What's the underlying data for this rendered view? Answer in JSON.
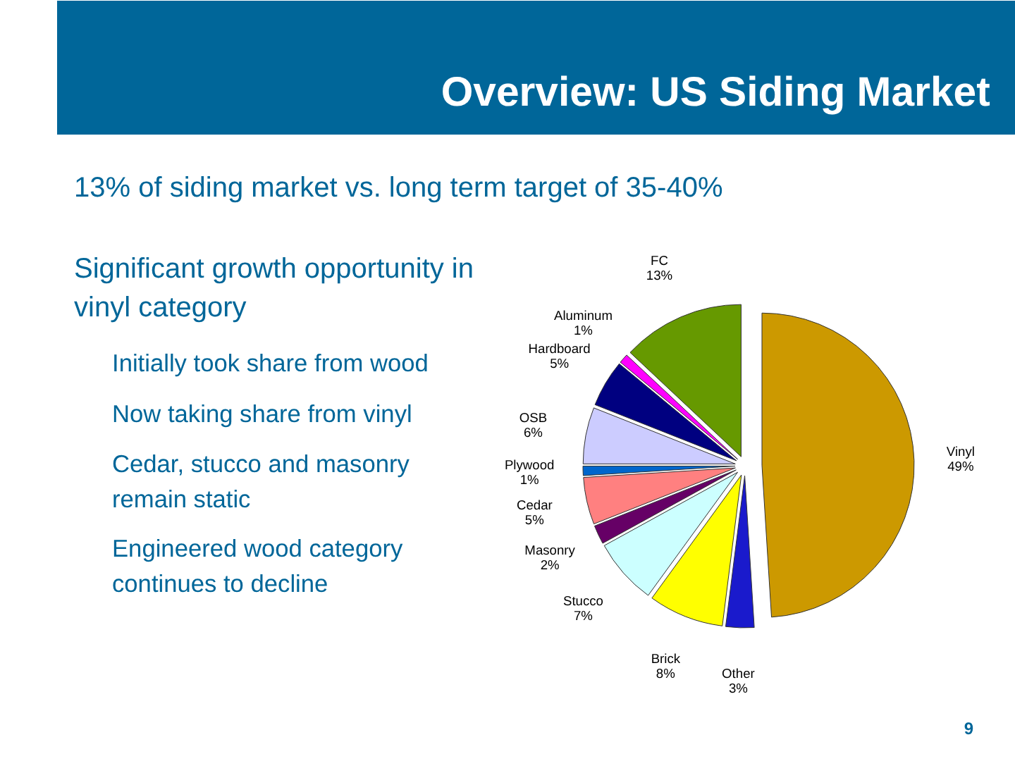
{
  "chart_data": {
    "type": "pie",
    "title": "Overview:  US Siding Market",
    "categories": [
      "Vinyl",
      "Other",
      "Brick",
      "Stucco",
      "Masonry",
      "Cedar",
      "Plywood",
      "OSB",
      "Hardboard",
      "Aluminum",
      "FC"
    ],
    "values": [
      49,
      3,
      8,
      7,
      2,
      5,
      1,
      6,
      5,
      1,
      13
    ],
    "value_labels": [
      "49%",
      "3%",
      "8%",
      "7%",
      "2%",
      "5%",
      "1%",
      "6%",
      "5%",
      "1%",
      "13%"
    ],
    "colors": [
      "#cc9900",
      "#1a1acc",
      "#ffff00",
      "#ccffff",
      "#660066",
      "#ff8080",
      "#0066cc",
      "#ccccff",
      "#000080",
      "#ff00ff",
      "#669900"
    ],
    "annotations": [
      "13% of siding market vs. long term target of 35-40%",
      "Significant growth opportunity in\nvinyl category",
      "Initially took share from wood",
      "Now taking share from vinyl",
      "Cedar, stucco and masonry\nremain static",
      "Engineered wood category\ncontinues to decline",
      "9"
    ]
  }
}
